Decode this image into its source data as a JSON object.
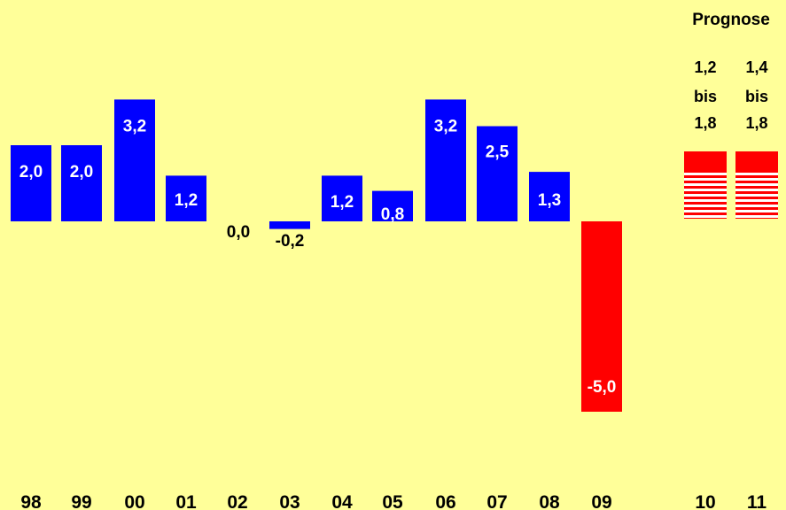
{
  "chart_data": {
    "type": "bar",
    "title": "",
    "xlabel": "",
    "ylabel": "",
    "grid": false,
    "legend": "none",
    "categories": [
      "98",
      "99",
      "00",
      "01",
      "02",
      "03",
      "04",
      "05",
      "06",
      "07",
      "08",
      "09",
      "10",
      "11"
    ],
    "values": [
      2.0,
      2.0,
      3.2,
      1.2,
      0.0,
      -0.2,
      1.2,
      0.8,
      3.2,
      2.5,
      1.3,
      -5.0,
      null,
      null
    ],
    "value_labels": [
      "2,0",
      "2,0",
      "3,2",
      "1,2",
      "0,0",
      "-0,2",
      "1,2",
      "0,8",
      "3,2",
      "2,5",
      "1,3",
      "-5,0",
      "",
      ""
    ],
    "forecast": {
      "heading": "Prognose",
      "items": [
        {
          "category": "10",
          "low": 1.2,
          "high": 1.8,
          "label_low": "1,2",
          "label_mid": "bis",
          "label_high": "1,8"
        },
        {
          "category": "11",
          "low": 1.4,
          "high": 1.8,
          "label_low": "1,4",
          "label_mid": "bis",
          "label_high": "1,8"
        }
      ]
    },
    "colors": {
      "positive": "#0000FF",
      "negative": "#FF0000",
      "forecast": "#FF0000",
      "background": "#FFFF99"
    }
  }
}
